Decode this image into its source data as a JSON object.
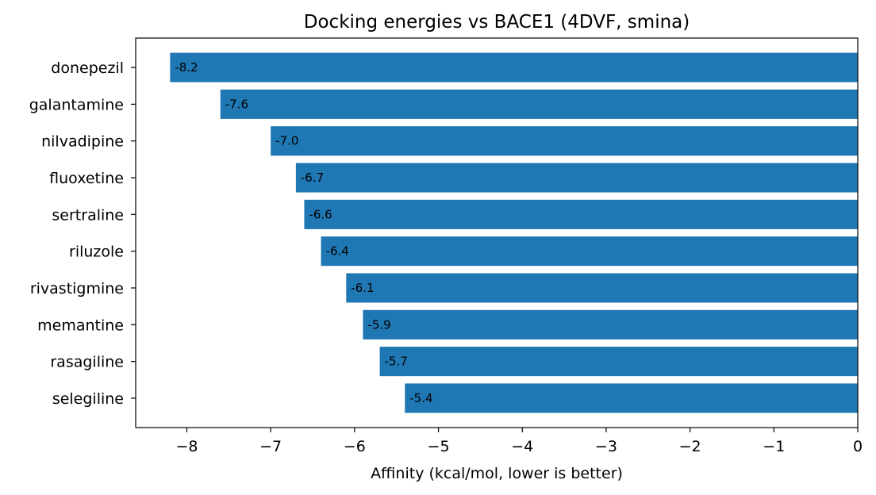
{
  "chart_data": {
    "type": "bar",
    "orientation": "horizontal",
    "title": "Docking energies vs BACE1 (4DVF, smina)",
    "xlabel": "Affinity (kcal/mol, lower is better)",
    "ylabel": "",
    "xlim": [
      -8.61,
      0
    ],
    "xticks": [
      -8,
      -7,
      -6,
      -5,
      -4,
      -3,
      -2,
      -1,
      0
    ],
    "xtick_labels": [
      "−8",
      "−7",
      "−6",
      "−5",
      "−4",
      "−3",
      "−2",
      "−1",
      "0"
    ],
    "categories": [
      "donepezil",
      "galantamine",
      "nilvadipine",
      "fluoxetine",
      "sertraline",
      "riluzole",
      "rivastigmine",
      "memantine",
      "rasagiline",
      "selegiline"
    ],
    "values": [
      -8.2,
      -7.6,
      -7.0,
      -6.7,
      -6.6,
      -6.4,
      -6.1,
      -5.9,
      -5.7,
      -5.4
    ],
    "value_labels": [
      "-8.2",
      "-7.6",
      "-7.0",
      "-6.7",
      "-6.6",
      "-6.4",
      "-6.1",
      "-5.9",
      "-5.7",
      "-5.4"
    ],
    "bar_color": "#1f77b4",
    "grid": false,
    "legend": "none"
  }
}
